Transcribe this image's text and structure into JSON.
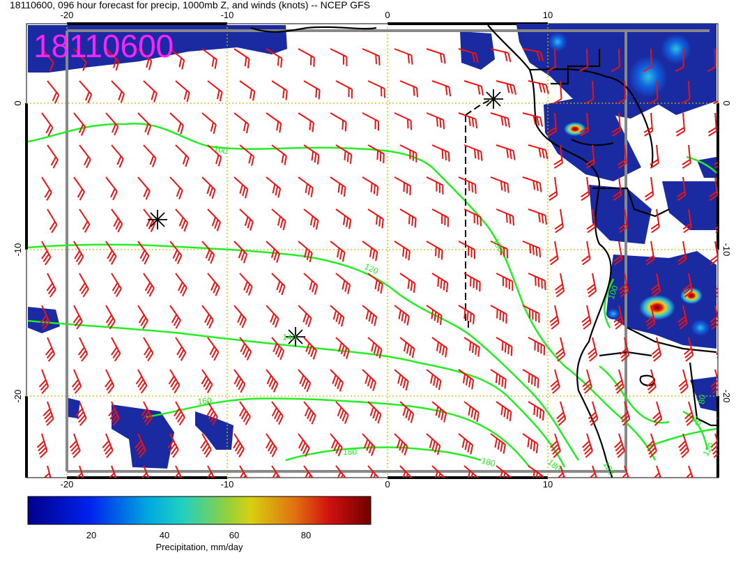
{
  "title": "18110600, 096 hour forecast for precip, 1000mb Z, and winds (knots) -- NCEP GFS",
  "stamp": "18110600",
  "axes": {
    "x_ticks": [
      "-20",
      "-10",
      "0",
      "10"
    ],
    "y_ticks": [
      "0",
      "-10",
      "-20"
    ]
  },
  "contour_labels": [
    "100",
    "100",
    "120",
    "140",
    "160",
    "180",
    "180",
    "180",
    "100",
    "80",
    "120",
    "120",
    "80"
  ],
  "colorbar": {
    "label": "Precipitation, mm/day",
    "ticks": [
      "20",
      "40",
      "60",
      "80"
    ]
  },
  "colors": {
    "precip_dark": "#1a2aa0",
    "contour": "#22ee22",
    "barb": "#ee1111",
    "stamp": "#ff22ff",
    "coast": "#000000"
  }
}
